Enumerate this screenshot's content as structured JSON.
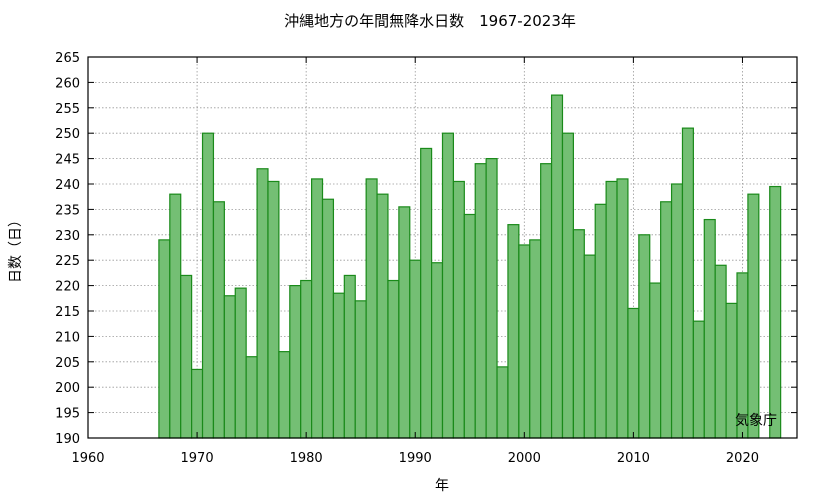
{
  "chart_data": {
    "type": "bar",
    "title": "沖縄地方の年間無降水日数　1967-2023年",
    "xlabel": "年",
    "ylabel": "日数（日）",
    "credit": "気象庁",
    "xlim": [
      1960,
      2025
    ],
    "ylim": [
      190,
      265
    ],
    "x_ticks": [
      1960,
      1970,
      1980,
      1990,
      2000,
      2010,
      2020
    ],
    "y_ticks": [
      190,
      195,
      200,
      205,
      210,
      215,
      220,
      225,
      230,
      235,
      240,
      245,
      250,
      255,
      260,
      265
    ],
    "grid": true,
    "bar_fill": "#74bf74",
    "bar_edge": "#1a8a1a",
    "grid_color": "#999999",
    "years": [
      1967,
      1968,
      1969,
      1970,
      1971,
      1972,
      1973,
      1974,
      1975,
      1976,
      1977,
      1978,
      1979,
      1980,
      1981,
      1982,
      1983,
      1984,
      1985,
      1986,
      1987,
      1988,
      1989,
      1990,
      1991,
      1992,
      1993,
      1994,
      1995,
      1996,
      1997,
      1998,
      1999,
      2000,
      2001,
      2002,
      2003,
      2004,
      2005,
      2006,
      2007,
      2008,
      2009,
      2010,
      2011,
      2012,
      2013,
      2014,
      2015,
      2016,
      2017,
      2018,
      2019,
      2020,
      2021,
      2022,
      2023
    ],
    "values": [
      229,
      238,
      222,
      203.5,
      250,
      236.5,
      218,
      219.5,
      206,
      243,
      240.5,
      207,
      220,
      221,
      241,
      237,
      218.5,
      222,
      217,
      241,
      238,
      221,
      235.5,
      225,
      247,
      224.5,
      250,
      240.5,
      234,
      244,
      245,
      204,
      232,
      228,
      229,
      244,
      257.5,
      250,
      231,
      226,
      236,
      240.5,
      241,
      215.5,
      230,
      220.5,
      236.5,
      240,
      251,
      213,
      233,
      224,
      216.5,
      222.5,
      238,
      190,
      239.5
    ]
  }
}
